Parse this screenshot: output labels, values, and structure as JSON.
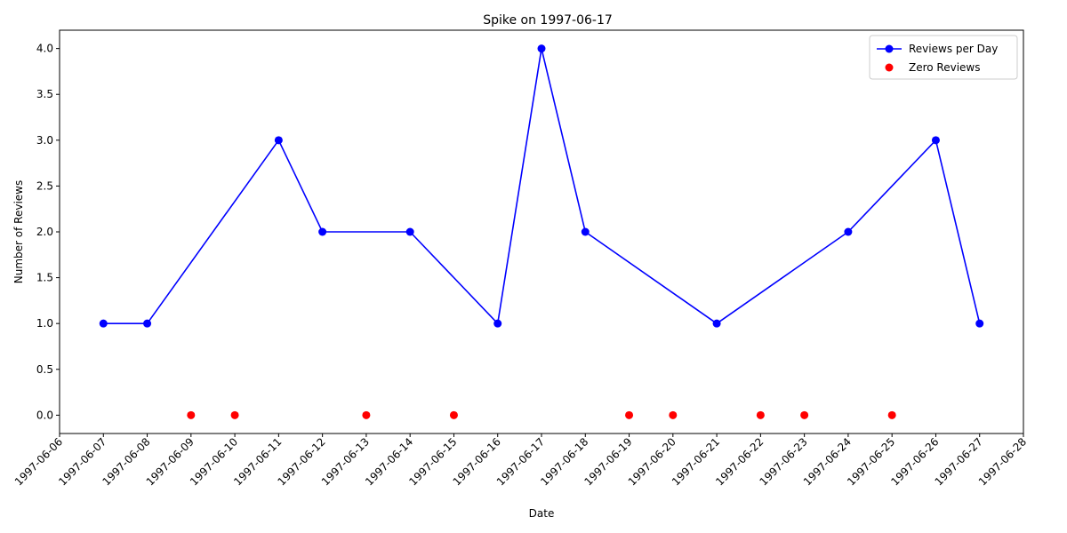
{
  "chart_data": {
    "type": "line",
    "title": "Spike on 1997-06-17",
    "xlabel": "Date",
    "ylabel": "Number of Reviews",
    "xlim": [
      "1997-06-06",
      "1997-06-28"
    ],
    "ylim": [
      -0.2,
      4.2
    ],
    "x_ticks": [
      "1997-06-06",
      "1997-06-07",
      "1997-06-08",
      "1997-06-09",
      "1997-06-10",
      "1997-06-11",
      "1997-06-12",
      "1997-06-13",
      "1997-06-14",
      "1997-06-15",
      "1997-06-16",
      "1997-06-17",
      "1997-06-18",
      "1997-06-19",
      "1997-06-20",
      "1997-06-21",
      "1997-06-22",
      "1997-06-23",
      "1997-06-24",
      "1997-06-25",
      "1997-06-26",
      "1997-06-27",
      "1997-06-28"
    ],
    "y_ticks": [
      "0.0",
      "0.5",
      "1.0",
      "1.5",
      "2.0",
      "2.5",
      "3.0",
      "3.5",
      "4.0"
    ],
    "grid": false,
    "legend_position": "top-right",
    "series": [
      {
        "name": "Reviews per Day",
        "kind": "line-with-markers",
        "color": "#0000ff",
        "x": [
          "1997-06-07",
          "1997-06-08",
          "1997-06-11",
          "1997-06-12",
          "1997-06-14",
          "1997-06-16",
          "1997-06-17",
          "1997-06-18",
          "1997-06-21",
          "1997-06-24",
          "1997-06-26",
          "1997-06-27"
        ],
        "y": [
          1,
          1,
          3,
          2,
          2,
          1,
          4,
          2,
          1,
          2,
          3,
          1
        ]
      },
      {
        "name": "Zero Reviews",
        "kind": "scatter",
        "color": "#ff0000",
        "x": [
          "1997-06-09",
          "1997-06-10",
          "1997-06-13",
          "1997-06-15",
          "1997-06-19",
          "1997-06-20",
          "1997-06-22",
          "1997-06-23",
          "1997-06-25"
        ],
        "y": [
          0,
          0,
          0,
          0,
          0,
          0,
          0,
          0,
          0
        ]
      }
    ]
  }
}
